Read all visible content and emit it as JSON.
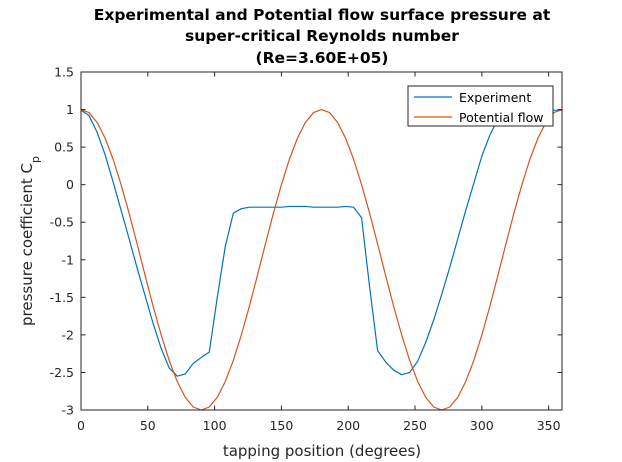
{
  "chart_data": {
    "type": "line",
    "title_lines": [
      "Experimental and Potential flow surface pressure at",
      "super-critical Reynolds number",
      "(Re=3.60E+05)"
    ],
    "xlabel": "tapping position (degrees)",
    "ylabel_main": "pressure coefficient C",
    "ylabel_sub": "p",
    "xlim": [
      0,
      360
    ],
    "ylim": [
      -3,
      1.5
    ],
    "xticks": [
      0,
      50,
      100,
      150,
      200,
      250,
      300,
      350
    ],
    "yticks": [
      -3,
      -2.5,
      -2,
      -1.5,
      -1,
      -0.5,
      0,
      0.5,
      1,
      1.5
    ],
    "xtick_labels": [
      "0",
      "50",
      "100",
      "150",
      "200",
      "250",
      "300",
      "350"
    ],
    "ytick_labels": [
      "-3",
      "-2.5",
      "-2",
      "-1.5",
      "-1",
      "-0.5",
      "0",
      "0.5",
      "1",
      "1.5"
    ],
    "grid": false,
    "legend_position": "top-right",
    "series": [
      {
        "name": "Experiment",
        "color": "#0072BD",
        "x": [
          0,
          6,
          12,
          18,
          24,
          30,
          36,
          42,
          48,
          54,
          60,
          66,
          72,
          78,
          84,
          90,
          96,
          102,
          108,
          114,
          120,
          126,
          132,
          138,
          144,
          150,
          156,
          162,
          168,
          174,
          180,
          186,
          192,
          198,
          204,
          210,
          216,
          222,
          228,
          234,
          240,
          246,
          252,
          258,
          264,
          270,
          276,
          282,
          288,
          294,
          300,
          306,
          312,
          318,
          324,
          330,
          336,
          342,
          348,
          354,
          360
        ],
        "y": [
          0.99,
          0.92,
          0.7,
          0.4,
          0.04,
          -0.34,
          -0.72,
          -1.11,
          -1.48,
          -1.85,
          -2.18,
          -2.44,
          -2.55,
          -2.52,
          -2.38,
          -2.3,
          -2.23,
          -1.5,
          -0.82,
          -0.38,
          -0.32,
          -0.3,
          -0.3,
          -0.3,
          -0.3,
          -0.3,
          -0.29,
          -0.29,
          -0.29,
          -0.3,
          -0.3,
          -0.3,
          -0.3,
          -0.29,
          -0.3,
          -0.44,
          -1.36,
          -2.21,
          -2.36,
          -2.47,
          -2.53,
          -2.5,
          -2.35,
          -2.1,
          -1.8,
          -1.46,
          -1.1,
          -0.72,
          -0.34,
          0.02,
          0.38,
          0.66,
          0.87,
          0.92,
          0.99,
          0.99,
          0.99,
          0.99,
          0.99,
          0.99,
          0.99
        ]
      },
      {
        "name": "Potential flow",
        "color": "#D95319",
        "x": [
          0,
          6,
          12,
          18,
          24,
          30,
          36,
          42,
          48,
          54,
          60,
          66,
          72,
          78,
          84,
          90,
          96,
          102,
          108,
          114,
          120,
          126,
          132,
          138,
          144,
          150,
          156,
          162,
          168,
          174,
          180,
          186,
          192,
          198,
          204,
          210,
          216,
          222,
          228,
          234,
          240,
          246,
          252,
          258,
          264,
          270,
          276,
          282,
          288,
          294,
          300,
          306,
          312,
          318,
          324,
          330,
          336,
          342,
          348,
          354,
          360
        ],
        "y": [
          1,
          0.96,
          0.83,
          0.62,
          0.34,
          0,
          -0.38,
          -0.79,
          -1.21,
          -1.62,
          -2,
          -2.34,
          -2.62,
          -2.83,
          -2.96,
          -3,
          -2.96,
          -2.83,
          -2.62,
          -2.34,
          -2,
          -1.62,
          -1.21,
          -0.79,
          -0.38,
          0,
          0.34,
          0.62,
          0.83,
          0.96,
          1,
          0.96,
          0.83,
          0.62,
          0.34,
          0,
          -0.38,
          -0.79,
          -1.21,
          -1.62,
          -2,
          -2.34,
          -2.62,
          -2.83,
          -2.96,
          -3,
          -2.96,
          -2.83,
          -2.62,
          -2.34,
          -2,
          -1.62,
          -1.21,
          -0.79,
          -0.38,
          0,
          0.34,
          0.62,
          0.83,
          0.96,
          1
        ]
      }
    ]
  }
}
